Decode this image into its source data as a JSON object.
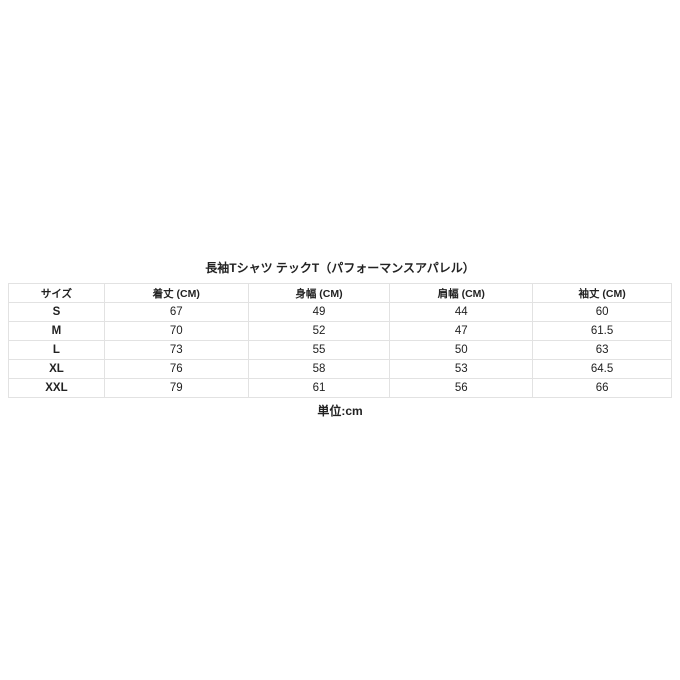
{
  "title": "長袖Tシャツ テックT（パフォーマンスアパレル）",
  "table": {
    "headers": [
      "サイズ",
      "着丈 (CM)",
      "身幅 (CM)",
      "肩幅 (CM)",
      "袖丈 (CM)"
    ],
    "rows": [
      [
        "S",
        "67",
        "49",
        "44",
        "60"
      ],
      [
        "M",
        "70",
        "52",
        "47",
        "61.5"
      ],
      [
        "L",
        "73",
        "55",
        "50",
        "63"
      ],
      [
        "XL",
        "76",
        "58",
        "53",
        "64.5"
      ],
      [
        "XXL",
        "79",
        "61",
        "56",
        "66"
      ]
    ]
  },
  "unit": "単位:cm"
}
